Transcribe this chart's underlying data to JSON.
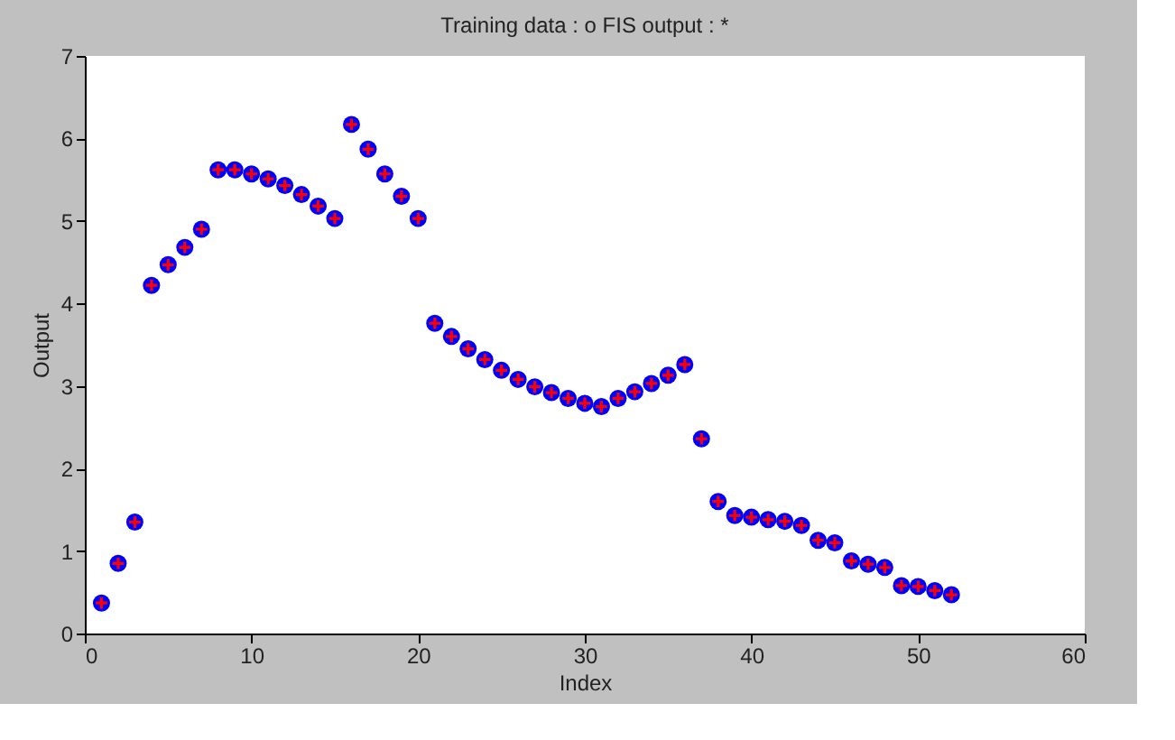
{
  "chart_data": {
    "type": "scatter",
    "title": "Training data : o   FIS output : *",
    "xlabel": "Index",
    "ylabel": "Output",
    "x": [
      1,
      2,
      3,
      4,
      5,
      6,
      7,
      8,
      9,
      10,
      11,
      12,
      13,
      14,
      15,
      16,
      17,
      18,
      19,
      20,
      21,
      22,
      23,
      24,
      25,
      26,
      27,
      28,
      29,
      30,
      31,
      32,
      33,
      34,
      35,
      36,
      37,
      38,
      39,
      40,
      41,
      42,
      43,
      44,
      45,
      46,
      47,
      48,
      49,
      50,
      51,
      52
    ],
    "series": [
      {
        "color": "#0000ff",
        "marker": "circle",
        "values": [
          0.37,
          0.85,
          1.35,
          4.22,
          4.47,
          4.68,
          4.9,
          5.62,
          5.62,
          5.57,
          5.51,
          5.43,
          5.32,
          5.18,
          5.03,
          6.17,
          5.87,
          5.57,
          5.3,
          5.03,
          3.76,
          3.6,
          3.45,
          3.32,
          3.19,
          3.08,
          2.99,
          2.92,
          2.85,
          2.79,
          2.75,
          2.85,
          2.93,
          3.03,
          3.13,
          3.26,
          2.36,
          1.6,
          1.43,
          1.41,
          1.38,
          1.36,
          1.31,
          1.13,
          1.1,
          0.88,
          0.84,
          0.8,
          0.58,
          0.57,
          0.52,
          0.47
        ]
      },
      {
        "color": "#ff0000",
        "marker": "cross",
        "values": [
          0.37,
          0.85,
          1.35,
          4.22,
          4.47,
          4.68,
          4.9,
          5.62,
          5.62,
          5.57,
          5.51,
          5.43,
          5.32,
          5.18,
          5.03,
          6.17,
          5.87,
          5.57,
          5.3,
          5.03,
          3.76,
          3.6,
          3.45,
          3.32,
          3.19,
          3.08,
          2.99,
          2.92,
          2.85,
          2.79,
          2.75,
          2.85,
          2.93,
          3.03,
          3.13,
          3.26,
          2.36,
          1.6,
          1.43,
          1.41,
          1.38,
          1.36,
          1.31,
          1.13,
          1.1,
          0.88,
          0.84,
          0.8,
          0.58,
          0.57,
          0.52,
          0.47
        ]
      }
    ],
    "xlim": [
      0,
      60
    ],
    "xticks": [
      0,
      10,
      20,
      30,
      40,
      50,
      60
    ],
    "ylim": [
      0,
      7
    ],
    "yticks": [
      0,
      1,
      2,
      3,
      4,
      5,
      6,
      7
    ],
    "grid": false
  }
}
